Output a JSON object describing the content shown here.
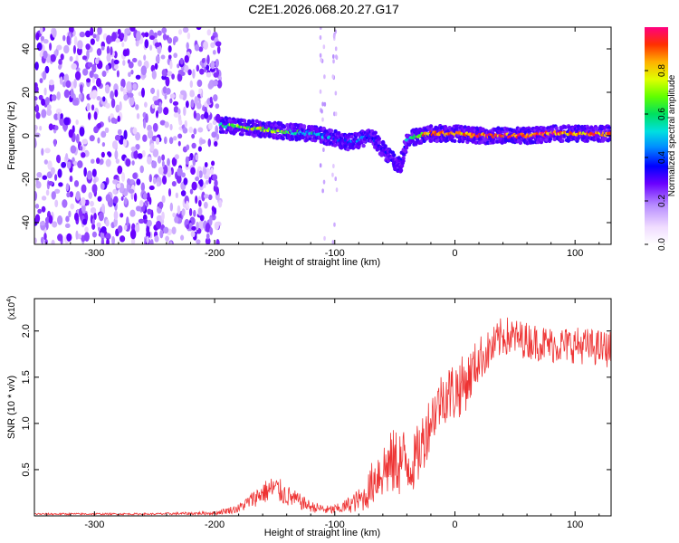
{
  "title": "C2E1.2026.068.20.27.G17",
  "chart_data": [
    {
      "type": "heatmap",
      "title": "C2E1.2026.068.20.27.G17",
      "xlabel": "Height of straight line (km)",
      "ylabel": "Frequency (Hz)",
      "xlim": [
        -350,
        130
      ],
      "ylim": [
        -50,
        50
      ],
      "xticks": [
        -300,
        -200,
        -100,
        0,
        100
      ],
      "yticks": [
        -40,
        -20,
        0,
        20,
        40
      ],
      "colorbar": {
        "label": "Normalized spectral amplitude",
        "range": [
          0,
          1
        ],
        "ticks": [
          0.0,
          0.2,
          0.4,
          0.6,
          0.8
        ],
        "tick_labels": [
          "0.0",
          "0.2",
          "0.4",
          "0.6",
          "0.8"
        ]
      },
      "noise_region_x": [
        -350,
        -195
      ],
      "ridge": {
        "x": [
          -195,
          -180,
          -160,
          -140,
          -120,
          -100,
          -90,
          -80,
          -70,
          -60,
          -50,
          -45,
          -40,
          -30,
          -20,
          -10,
          0,
          20,
          40,
          60,
          80,
          100,
          130
        ],
        "freq": [
          5,
          4,
          3,
          2,
          1,
          -1,
          -3,
          -2,
          0,
          -6,
          -12,
          -14,
          -2,
          0,
          1,
          1,
          1,
          0,
          0,
          0,
          1,
          1,
          1
        ],
        "amplitude": [
          0.55,
          0.7,
          0.75,
          0.6,
          0.5,
          0.35,
          0.3,
          0.4,
          0.35,
          0.3,
          0.25,
          0.2,
          0.5,
          0.75,
          0.9,
          0.85,
          0.8,
          0.9,
          0.9,
          0.95,
          0.9,
          0.85,
          0.85
        ]
      }
    },
    {
      "type": "line",
      "xlabel": "Height of straight line (km)",
      "ylabel": "SNR (10 * v/v)",
      "exponent_label": "(x10",
      "exponent_power": "4",
      "exponent_close": ")",
      "xlim": [
        -350,
        130
      ],
      "ylim": [
        0,
        2.35
      ],
      "xticks": [
        -300,
        -200,
        -100,
        0,
        100
      ],
      "yticks": [
        0.5,
        1.0,
        1.5,
        2.0
      ],
      "ytick_labels": [
        "0.5",
        "1.0",
        "1.5",
        "2.0"
      ],
      "color": "#ee3333",
      "envelope": {
        "x": [
          -350,
          -250,
          -200,
          -180,
          -160,
          -150,
          -140,
          -120,
          -105,
          -95,
          -75,
          -65,
          -55,
          -45,
          -35,
          -28,
          -20,
          -10,
          0,
          10,
          20,
          30,
          40,
          60,
          80,
          100,
          130
        ],
        "mean": [
          0.02,
          0.02,
          0.03,
          0.08,
          0.25,
          0.3,
          0.22,
          0.1,
          0.06,
          0.08,
          0.2,
          0.45,
          0.55,
          0.6,
          0.55,
          0.75,
          1.05,
          1.3,
          1.35,
          1.45,
          1.7,
          1.8,
          1.95,
          1.9,
          1.85,
          1.85,
          1.8
        ],
        "spread": [
          0.01,
          0.01,
          0.02,
          0.05,
          0.12,
          0.15,
          0.12,
          0.06,
          0.05,
          0.06,
          0.15,
          0.3,
          0.35,
          0.4,
          0.3,
          0.35,
          0.3,
          0.3,
          0.35,
          0.3,
          0.25,
          0.22,
          0.22,
          0.2,
          0.2,
          0.2,
          0.2
        ]
      }
    }
  ]
}
